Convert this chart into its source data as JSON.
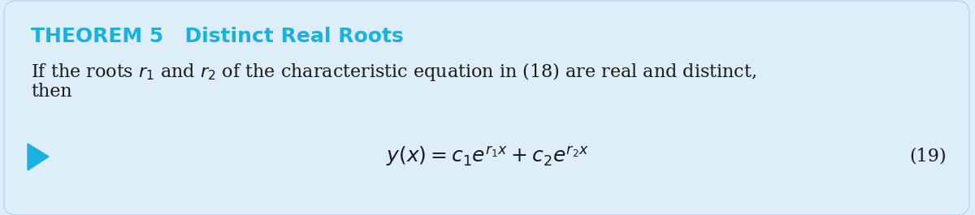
{
  "bg_color": "#ddeef8",
  "border_color": "#b8d4e8",
  "title_color": "#1ab0e0",
  "title_text": "THEOREM 5   Distinct Real Roots",
  "body_line1": "If the roots $r_1$ and $r_2$ of the characteristic equation in (18) are real and distinct,",
  "body_line2": "then",
  "formula": "$y(x) = c_1e^{r_1 x} + c_2e^{r_2 x}$",
  "eq_number": "(19)",
  "arrow_color": "#1ab0e0",
  "text_color": "#1a1a1a",
  "title_fontsize": 18,
  "body_fontsize": 16,
  "formula_fontsize": 18,
  "eq_num_fontsize": 16
}
